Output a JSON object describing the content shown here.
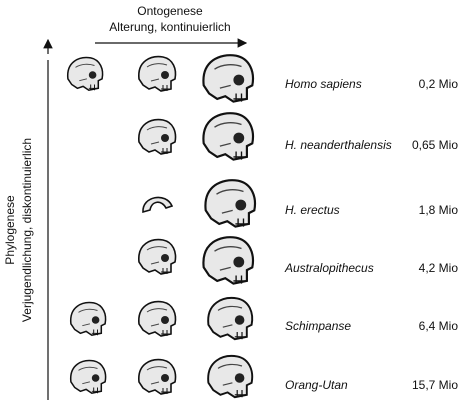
{
  "header": {
    "title": "Ontogenese",
    "subtitle": "Alterung, kontinuierlich"
  },
  "side": {
    "title": "Phylogenese",
    "subtitle": "Verjugendlichung, diskontinuierlich"
  },
  "rows": [
    {
      "species": "Homo sapiens",
      "age": "0,2 Mio"
    },
    {
      "species": "H. neanderthalensis",
      "age": "0,65 Mio"
    },
    {
      "species": "H. erectus",
      "age": "1,8 Mio"
    },
    {
      "species": "Australopithecus",
      "age": "4,2 Mio"
    },
    {
      "species": "Schimpanse",
      "age": "6,4 Mio"
    },
    {
      "species": "Orang-Utan",
      "age": "15,7 Mio"
    }
  ]
}
